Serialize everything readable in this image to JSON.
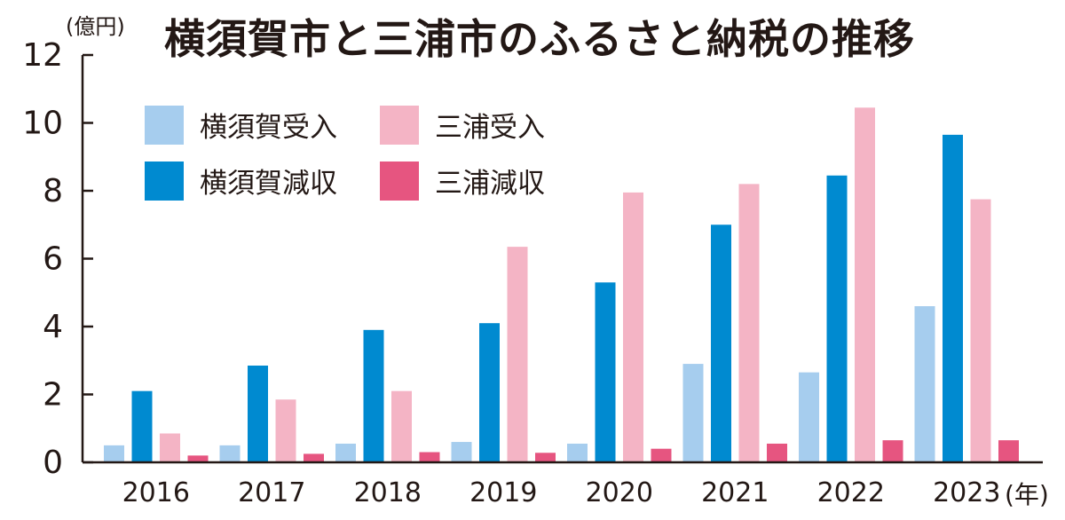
{
  "chart_data": {
    "type": "bar",
    "title": "横須賀市と三浦市のふるさと納税の推移",
    "ylabel": "(億円)",
    "xlabel": "(年)",
    "ylim": [
      0,
      12
    ],
    "yticks": [
      0,
      2,
      4,
      6,
      8,
      10,
      12
    ],
    "categories": [
      "2016",
      "2017",
      "2018",
      "2019",
      "2020",
      "2021",
      "2022",
      "2023"
    ],
    "series": [
      {
        "name": "横須賀受入",
        "color": "#a6cdee",
        "values": [
          0.5,
          0.5,
          0.55,
          0.6,
          0.55,
          2.9,
          2.65,
          4.6
        ]
      },
      {
        "name": "横須賀減収",
        "color": "#008ad0",
        "values": [
          2.1,
          2.85,
          3.9,
          4.1,
          5.3,
          7.0,
          8.45,
          9.65
        ]
      },
      {
        "name": "三浦受入",
        "color": "#f4b4c5",
        "values": [
          0.85,
          1.85,
          2.1,
          6.35,
          7.95,
          8.2,
          10.45,
          7.75
        ]
      },
      {
        "name": "三浦減収",
        "color": "#e65580",
        "values": [
          0.2,
          0.25,
          0.3,
          0.28,
          0.4,
          0.55,
          0.65,
          0.65
        ]
      }
    ]
  }
}
